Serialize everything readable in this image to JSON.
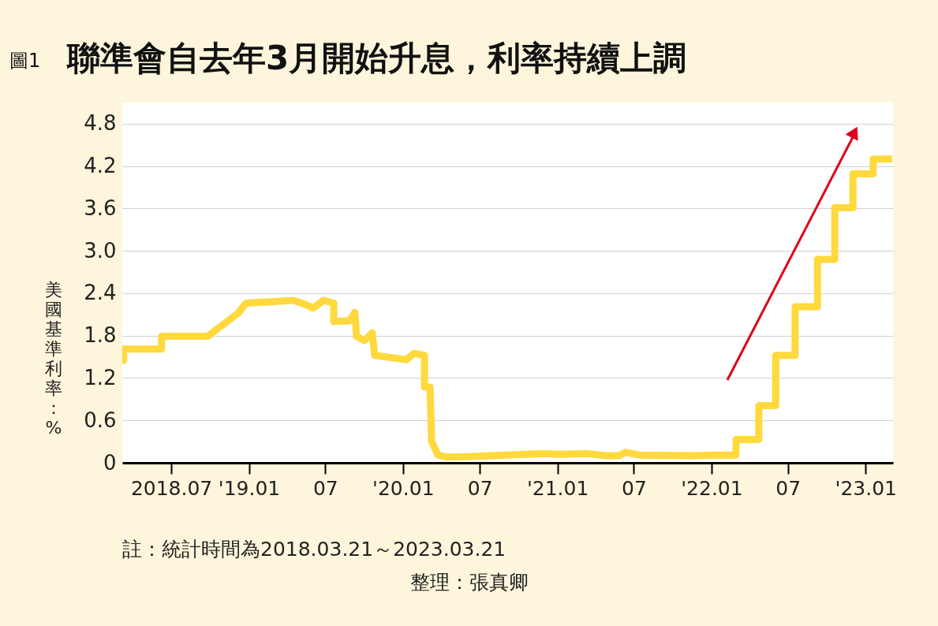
{
  "chart_data": {
    "type": "line",
    "title": "聯準會自去年3月開始升息，利率持續上調",
    "ylabel": "美國基準利率：%",
    "annotations": [
      "圖1",
      "註：統計時間為2018.03.21～2023.03.21",
      "整理：張真卿"
    ],
    "x": [
      "2018-03-21",
      "2018-03-24",
      "2018-03-24",
      "2018-06-22",
      "2018-06-22",
      "2018-10-09",
      "2018-12-21",
      "2019-01-08",
      "2019-05-01",
      "2019-06-03",
      "2019-06-16",
      "2019-07-11",
      "2019-08-04",
      "2019-08-04",
      "2019-09-10",
      "2019-09-23",
      "2019-09-27",
      "2019-10-16",
      "2019-11-03",
      "2019-11-09",
      "2020-01-23",
      "2020-02-11",
      "2020-03-06",
      "2020-03-06",
      "2020-03-19",
      "2020-03-23",
      "2020-04-07",
      "2020-04-29",
      "2020-06-30",
      "2020-09-12",
      "2020-12-15",
      "2021-01-21",
      "2021-03-28",
      "2021-05-13",
      "2021-06-10",
      "2021-06-25",
      "2021-07-27",
      "2021-12-05",
      "2022-01-11",
      "2022-03-14",
      "2022-03-14",
      "2022-05-07",
      "2022-05-07",
      "2022-06-16",
      "2022-06-16",
      "2022-08-01",
      "2022-08-01",
      "2022-09-23",
      "2022-09-23",
      "2022-11-03",
      "2022-11-03",
      "2022-12-16",
      "2022-12-16",
      "2023-02-02",
      "2023-02-02",
      "2023-03-19"
    ],
    "series": [
      {
        "color": "#ffd93d",
        "values": [
          1.45,
          1.45,
          1.61,
          1.61,
          1.79,
          1.79,
          2.12,
          2.26,
          2.3,
          2.23,
          2.19,
          2.3,
          2.26,
          2.0,
          2.01,
          2.13,
          1.79,
          1.73,
          1.84,
          1.52,
          1.46,
          1.55,
          1.52,
          1.07,
          1.07,
          0.3,
          0.11,
          0.08,
          0.09,
          0.11,
          0.13,
          0.12,
          0.13,
          0.1,
          0.1,
          0.15,
          0.11,
          0.1,
          0.11,
          0.11,
          0.33,
          0.33,
          0.81,
          0.81,
          1.52,
          1.52,
          2.21,
          2.21,
          2.88,
          2.88,
          3.61,
          3.61,
          4.09,
          4.09,
          4.3,
          4.3
        ]
      }
    ],
    "xlim": [
      "2018-03-21",
      "2023-03-21"
    ],
    "xticks": [
      {
        "value": "2018-07-15",
        "label": "2018.07"
      },
      {
        "value": "2019-01-15",
        "label": "'19.01"
      },
      {
        "value": "2019-07-15",
        "label": "07"
      },
      {
        "value": "2020-01-15",
        "label": "'20.01"
      },
      {
        "value": "2020-07-15",
        "label": "07"
      },
      {
        "value": "2021-01-15",
        "label": "'21.01"
      },
      {
        "value": "2021-07-15",
        "label": "07"
      },
      {
        "value": "2022-01-15",
        "label": "'22.01"
      },
      {
        "value": "2022-07-15",
        "label": "07"
      },
      {
        "value": "2023-01-15",
        "label": "'23.01"
      }
    ],
    "ylim": [
      0,
      5.1
    ],
    "yticks": [
      0,
      0.6,
      1.2,
      1.8,
      2.4,
      {
        "value": 3,
        "label": "3.0"
      },
      3.6,
      4.2,
      4.8
    ],
    "grid": "y",
    "marker": "none",
    "line_style": "solid"
  }
}
